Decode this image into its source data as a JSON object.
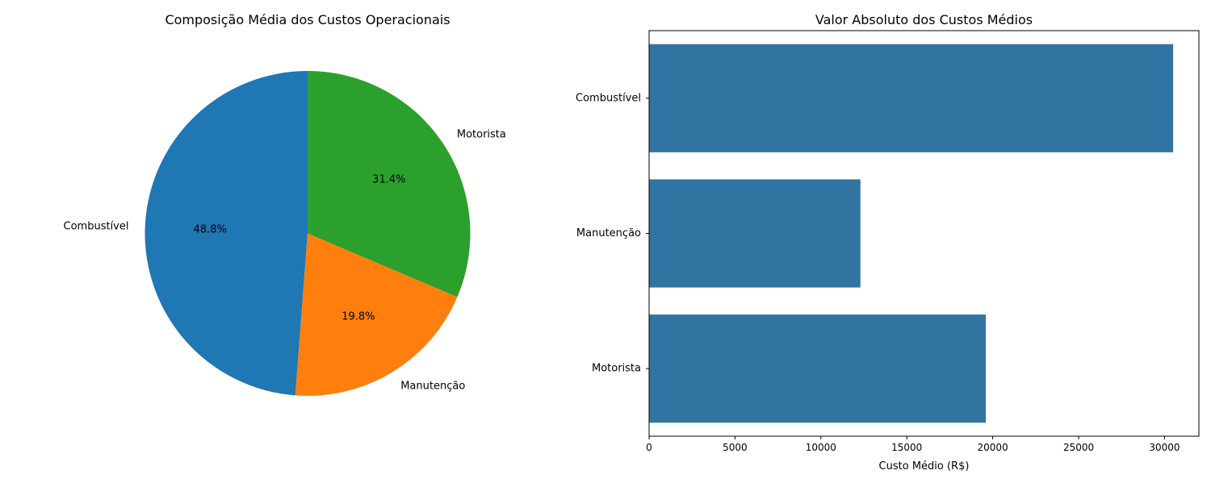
{
  "chart_data": [
    {
      "type": "pie",
      "title": "Composição Média dos Custos Operacionais",
      "categories": [
        "Combustível",
        "Manutenção",
        "Motorista"
      ],
      "values": [
        48.8,
        19.8,
        31.4
      ],
      "value_labels": [
        "48.8%",
        "19.8%",
        "31.4%"
      ],
      "colors": [
        "#1f77b4",
        "#ff7f0e",
        "#2ca02c"
      ],
      "start_angle_deg": 90,
      "direction": "counterclockwise"
    },
    {
      "type": "bar",
      "orientation": "horizontal",
      "title": "Valor Absoluto dos Custos Médios",
      "categories": [
        "Combustível",
        "Manutenção",
        "Motorista"
      ],
      "values": [
        30500,
        12300,
        19600
      ],
      "xlabel": "Custo Médio (R$)",
      "ylabel": "",
      "xlim": [
        0,
        32000
      ],
      "xticks": [
        0,
        5000,
        10000,
        15000,
        20000,
        25000,
        30000
      ],
      "xtick_labels": [
        "0",
        "5000",
        "10000",
        "15000",
        "20000",
        "25000",
        "30000"
      ],
      "bar_color": "#3274a1",
      "grid": false
    }
  ]
}
